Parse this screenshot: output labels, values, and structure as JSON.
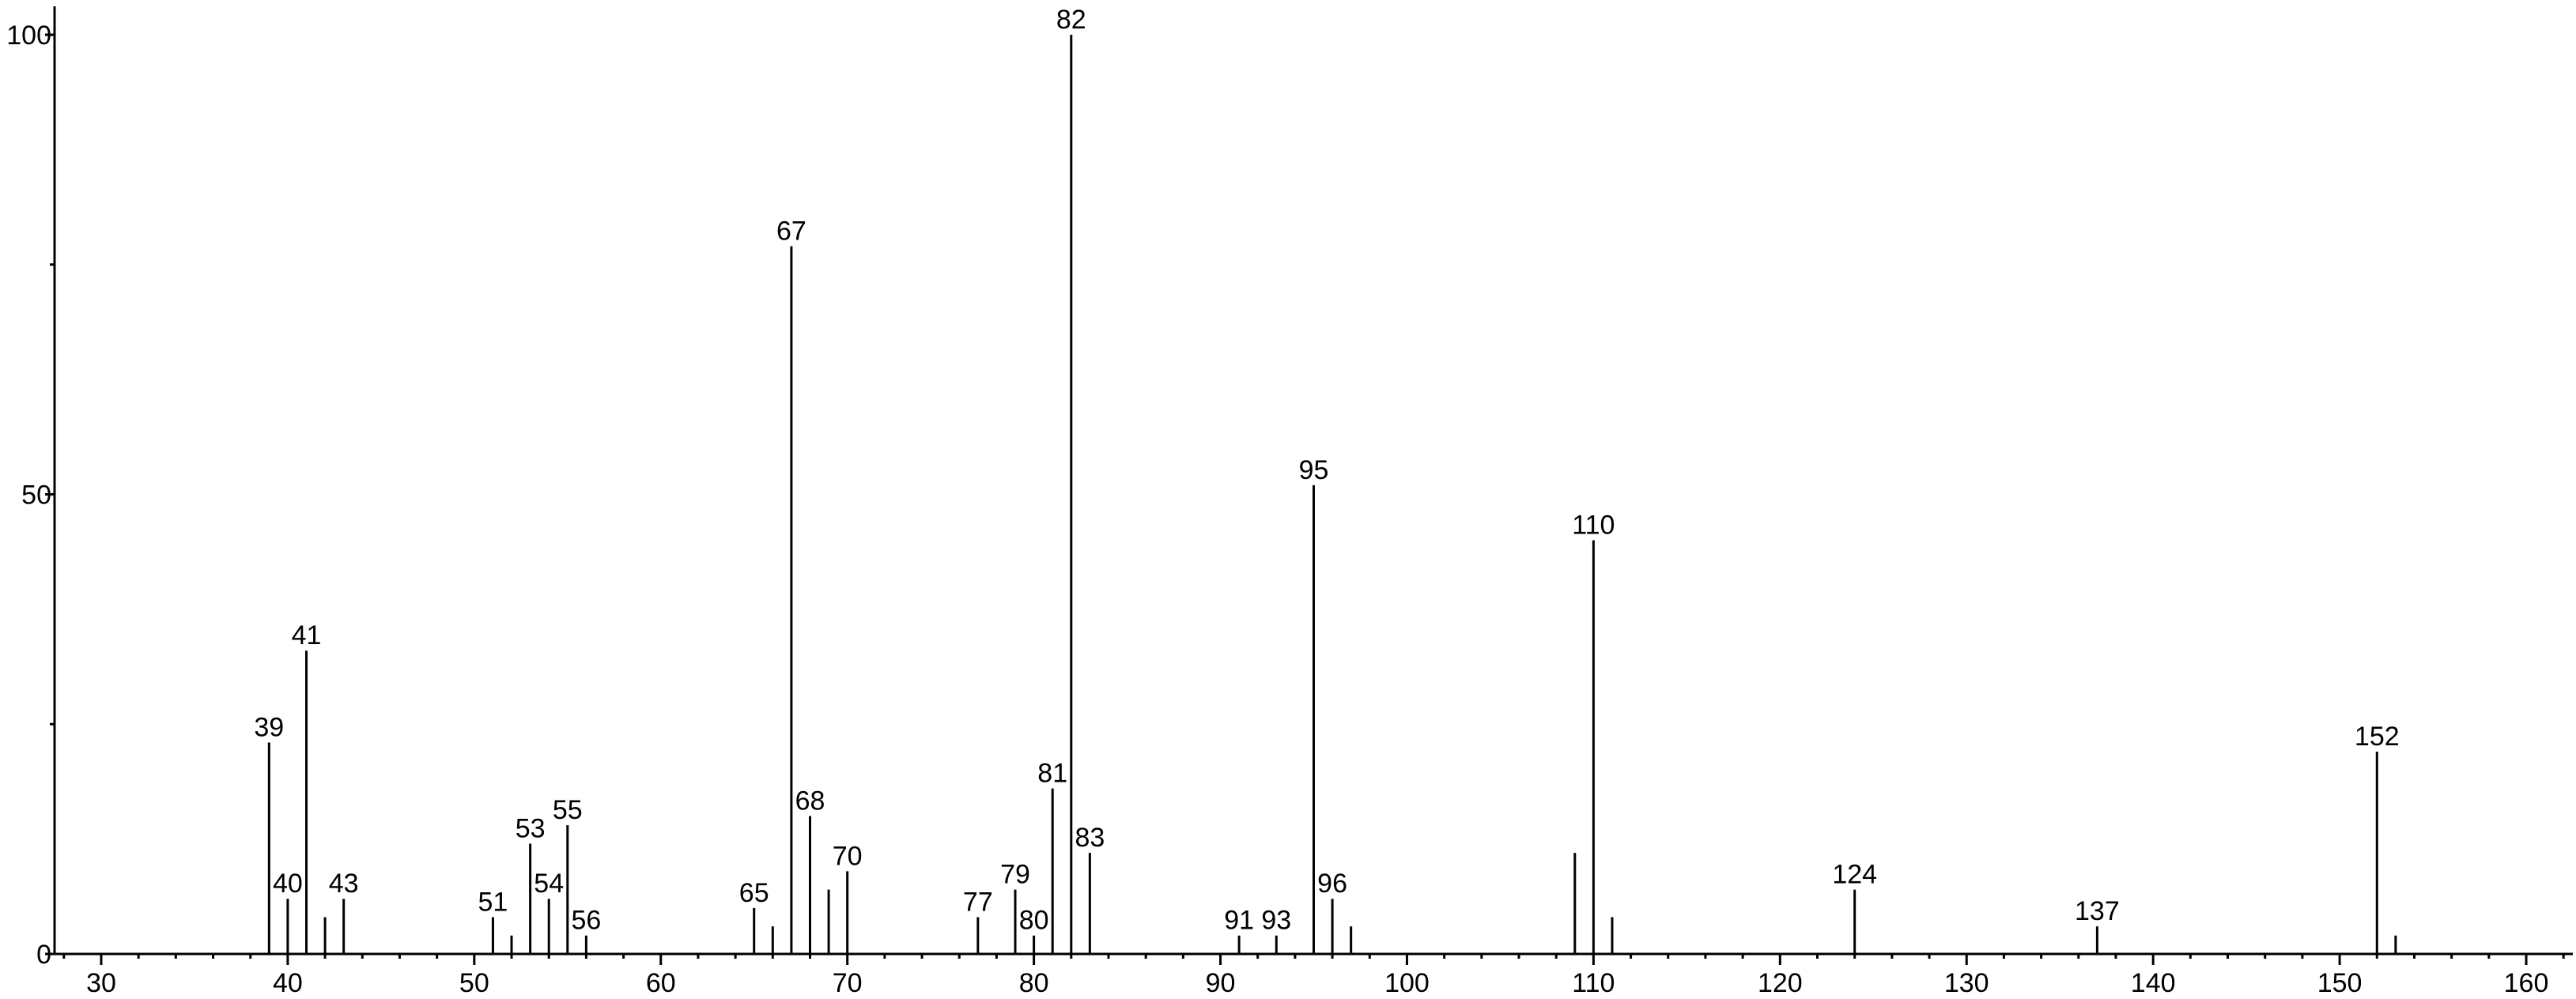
{
  "chart_data": {
    "type": "bar",
    "title": "",
    "xlabel": "",
    "ylabel": "",
    "xlim": [
      27.5,
      162.5
    ],
    "ylim": [
      0,
      100
    ],
    "grid": false,
    "x_ticks": [
      30,
      40,
      50,
      60,
      70,
      80,
      90,
      100,
      110,
      120,
      130,
      140,
      150,
      160
    ],
    "x_tick_labels": [
      "30",
      "40",
      "50",
      "60",
      "70",
      "80",
      "90",
      "100",
      "110",
      "120",
      "130",
      "140",
      "150",
      "160"
    ],
    "x_minor_step": 2,
    "y_ticks": [
      0,
      50,
      100
    ],
    "y_tick_labels": [
      "0",
      "50",
      "100"
    ],
    "y_minor_ticks": [
      25,
      75
    ],
    "color": "#000000",
    "peaks": [
      {
        "x": 39,
        "y": 23,
        "label": "39"
      },
      {
        "x": 40,
        "y": 6,
        "label": "40"
      },
      {
        "x": 41,
        "y": 33,
        "label": "41"
      },
      {
        "x": 42,
        "y": 4,
        "label": ""
      },
      {
        "x": 43,
        "y": 6,
        "label": "43"
      },
      {
        "x": 51,
        "y": 4,
        "label": "51"
      },
      {
        "x": 52,
        "y": 2,
        "label": ""
      },
      {
        "x": 53,
        "y": 12,
        "label": "53"
      },
      {
        "x": 54,
        "y": 6,
        "label": "54"
      },
      {
        "x": 55,
        "y": 14,
        "label": "55"
      },
      {
        "x": 56,
        "y": 2,
        "label": "56"
      },
      {
        "x": 65,
        "y": 5,
        "label": "65"
      },
      {
        "x": 66,
        "y": 3,
        "label": ""
      },
      {
        "x": 67,
        "y": 77,
        "label": "67"
      },
      {
        "x": 68,
        "y": 15,
        "label": "68"
      },
      {
        "x": 69,
        "y": 7,
        "label": ""
      },
      {
        "x": 70,
        "y": 9,
        "label": "70"
      },
      {
        "x": 77,
        "y": 4,
        "label": "77"
      },
      {
        "x": 79,
        "y": 7,
        "label": "79"
      },
      {
        "x": 80,
        "y": 2,
        "label": "80"
      },
      {
        "x": 81,
        "y": 18,
        "label": "81"
      },
      {
        "x": 82,
        "y": 100,
        "label": "82"
      },
      {
        "x": 83,
        "y": 11,
        "label": "83"
      },
      {
        "x": 91,
        "y": 2,
        "label": "91"
      },
      {
        "x": 93,
        "y": 2,
        "label": "93"
      },
      {
        "x": 95,
        "y": 51,
        "label": "95"
      },
      {
        "x": 96,
        "y": 6,
        "label": "96"
      },
      {
        "x": 97,
        "y": 3,
        "label": ""
      },
      {
        "x": 109,
        "y": 11,
        "label": ""
      },
      {
        "x": 110,
        "y": 45,
        "label": "110"
      },
      {
        "x": 111,
        "y": 4,
        "label": ""
      },
      {
        "x": 124,
        "y": 7,
        "label": "124"
      },
      {
        "x": 137,
        "y": 3,
        "label": "137"
      },
      {
        "x": 152,
        "y": 22,
        "label": "152"
      },
      {
        "x": 153,
        "y": 2,
        "label": ""
      }
    ]
  }
}
